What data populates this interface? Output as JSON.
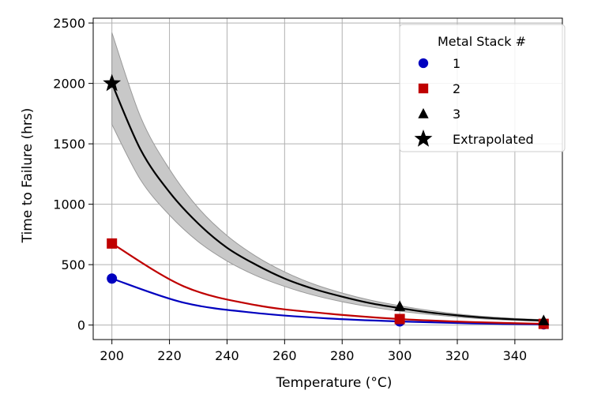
{
  "chart_data": {
    "type": "line",
    "xlabel": "Temperature (°C)",
    "ylabel": "Time to Failure (hrs)",
    "xlim": [
      193.5,
      356.5
    ],
    "ylim": [
      -120,
      2540
    ],
    "x_ticks": [
      200,
      220,
      240,
      260,
      280,
      300,
      320,
      340
    ],
    "x_tick_labels": [
      "200",
      "220",
      "240",
      "260",
      "280",
      "300",
      "320",
      "340"
    ],
    "y_ticks": [
      0,
      500,
      1000,
      1500,
      2000,
      2500
    ],
    "y_tick_labels": [
      "0",
      "500",
      "1000",
      "1500",
      "2000",
      "2500"
    ],
    "grid": true,
    "legend": {
      "title": "Metal Stack #",
      "placement": "top-right",
      "entries": [
        {
          "label": "1",
          "marker": "circle",
          "color": "#0000bf"
        },
        {
          "label": "2",
          "marker": "square",
          "color": "#bf0000"
        },
        {
          "label": "3",
          "marker": "triangle",
          "color": "#000000"
        },
        {
          "label": "Extrapolated",
          "marker": "star",
          "color": "#000000"
        }
      ]
    },
    "series": [
      {
        "name": "1",
        "color": "#0000bf",
        "marker": "circle",
        "points": [
          {
            "x": 200,
            "y": 385
          },
          {
            "x": 300,
            "y": 30
          },
          {
            "x": 350,
            "y": 6
          }
        ],
        "fit": {
          "x": [
            200,
            225,
            250,
            275,
            300,
            325,
            350
          ],
          "y": [
            385,
            185,
            100,
            55,
            30,
            14,
            6
          ]
        }
      },
      {
        "name": "2",
        "color": "#bf0000",
        "marker": "square",
        "points": [
          {
            "x": 200,
            "y": 675
          },
          {
            "x": 300,
            "y": 50
          },
          {
            "x": 350,
            "y": 10
          }
        ],
        "fit": {
          "x": [
            200,
            225,
            250,
            275,
            300,
            325,
            350
          ],
          "y": [
            675,
            320,
            165,
            95,
            50,
            25,
            10
          ]
        }
      },
      {
        "name": "3",
        "color": "#000000",
        "marker": "triangle",
        "points": [
          {
            "x": 300,
            "y": 155
          },
          {
            "x": 350,
            "y": 38
          }
        ],
        "fit": {
          "x": [
            200,
            210,
            220,
            230,
            240,
            250,
            260,
            270,
            280,
            290,
            300,
            310,
            320,
            330,
            340,
            350
          ],
          "y": [
            2000,
            1450,
            1100,
            840,
            640,
            500,
            385,
            300,
            235,
            180,
            140,
            105,
            80,
            60,
            47,
            38
          ]
        },
        "band_upper": [
          2420,
          1720,
          1290,
          970,
          740,
          570,
          440,
          340,
          265,
          205,
          160,
          122,
          92,
          70,
          55,
          45
        ],
        "band_lower": [
          1660,
          1200,
          910,
          690,
          530,
          410,
          320,
          248,
          193,
          150,
          115,
          88,
          67,
          50,
          39,
          30
        ]
      }
    ],
    "extrapolated": {
      "x": 200,
      "y": 2000,
      "marker": "star",
      "color": "#000000"
    }
  }
}
